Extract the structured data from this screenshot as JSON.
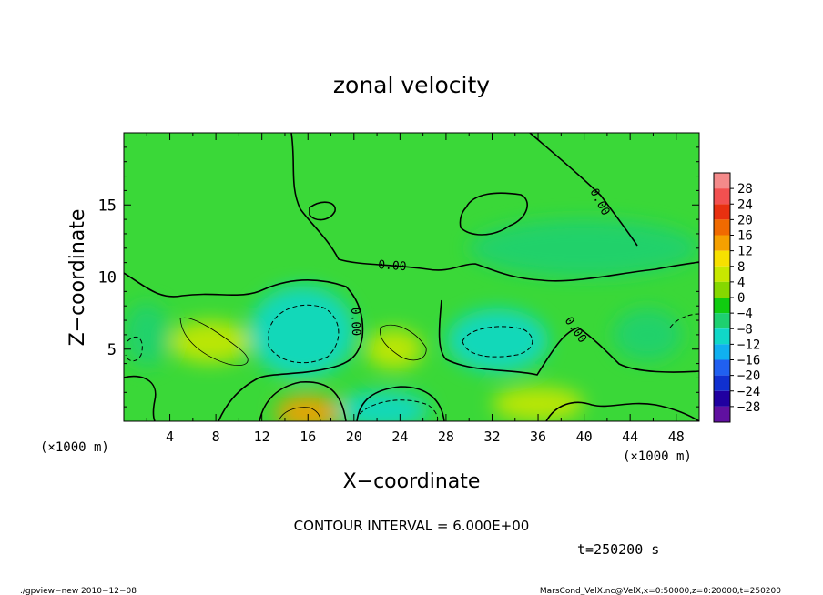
{
  "chart_data": {
    "type": "heatmap",
    "title": "zonal velocity",
    "xlabel": "X−coordinate",
    "ylabel": "Z−coordinate",
    "x_unit_left": "(×1000 m)",
    "x_unit_right": "(×1000 m)",
    "x_range": [
      0,
      50
    ],
    "y_range": [
      0,
      20
    ],
    "x_ticks": [
      4,
      8,
      12,
      16,
      20,
      24,
      28,
      32,
      36,
      40,
      44,
      48
    ],
    "y_ticks": [
      5,
      10,
      15
    ],
    "contour_interval_text": "CONTOUR INTERVAL = 6.000E+00",
    "contour_labels": [
      "0.00",
      "0.00",
      "0.00",
      "0.00"
    ],
    "time_text": "t=250200 s",
    "colorbar": {
      "labels": [
        "28",
        "24",
        "20",
        "16",
        "12",
        "8",
        "4",
        "0",
        "−4",
        "−8",
        "−12",
        "−16",
        "−20",
        "−24",
        "−28"
      ],
      "colors": [
        "#f48a8a",
        "#f25050",
        "#e83010",
        "#f06a00",
        "#f5a000",
        "#f7e000",
        "#c8e800",
        "#86d800",
        "#10cc10",
        "#1ed070",
        "#10d8c8",
        "#10b0f0",
        "#2060f0",
        "#1030d0",
        "#2000a0",
        "#6010a0"
      ]
    },
    "blobs": [
      {
        "x": 15.5,
        "y": 6.2,
        "rx": 4.6,
        "ry": 3.2,
        "value": -11
      },
      {
        "x": 32.5,
        "y": 5.6,
        "rx": 4.4,
        "ry": 2.2,
        "value": -8
      },
      {
        "x": 22.5,
        "y": 0.8,
        "rx": 4.0,
        "ry": 1.3,
        "value": -10
      },
      {
        "x": 45.5,
        "y": 6.0,
        "rx": 3.0,
        "ry": 1.8,
        "value": -5
      },
      {
        "x": 16.0,
        "y": 0.6,
        "rx": 2.8,
        "ry": 1.2,
        "value": 16
      },
      {
        "x": 7.5,
        "y": 5.5,
        "rx": 3.5,
        "ry": 1.5,
        "value": 7
      },
      {
        "x": 23.5,
        "y": 5.0,
        "rx": 2.5,
        "ry": 1.4,
        "value": 6
      },
      {
        "x": 40.0,
        "y": 12.0,
        "rx": 10.0,
        "ry": 2.0,
        "value": -4
      },
      {
        "x": 2.0,
        "y": 6.0,
        "rx": 2.0,
        "ry": 2.2,
        "value": -4
      },
      {
        "x": 36.0,
        "y": 1.2,
        "rx": 4.0,
        "ry": 1.2,
        "value": 5
      }
    ]
  },
  "footer": {
    "left": "./gpview−new  2010−12−08",
    "right": "MarsCond_VelX.nc@VelX,x=0:50000,z=0:20000,t=250200"
  }
}
